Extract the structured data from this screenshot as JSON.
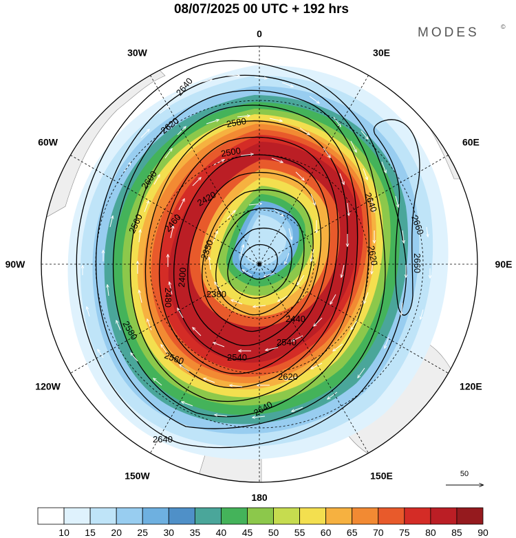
{
  "title": "08/07/2025  00 UTC  + 192 hrs",
  "brand": "MODES",
  "brand_mark": "©",
  "longitude_labels": [
    {
      "label": "0",
      "lon": 0
    },
    {
      "label": "30E",
      "lon": 30
    },
    {
      "label": "60E",
      "lon": 60
    },
    {
      "label": "90E",
      "lon": 90
    },
    {
      "label": "120E",
      "lon": 120
    },
    {
      "label": "150E",
      "lon": 150
    },
    {
      "label": "180",
      "lon": 180
    },
    {
      "label": "150W",
      "lon": -150
    },
    {
      "label": "120W",
      "lon": -120
    },
    {
      "label": "90W",
      "lon": -90
    },
    {
      "label": "60W",
      "lon": -60
    },
    {
      "label": "30W",
      "lon": -30
    }
  ],
  "contour_labels": [
    "2640",
    "2620",
    "2580",
    "2500",
    "2600",
    "2560",
    "2420",
    "2460",
    "2350",
    "2480",
    "2400",
    "2380",
    "2440",
    "2540",
    "2660",
    "2640",
    "2620",
    "2580",
    "2560",
    "2540",
    "2620",
    "2640",
    "2640",
    "2660"
  ],
  "vector_reference": "50",
  "colorbar": {
    "ticks": [
      "10",
      "15",
      "20",
      "25",
      "30",
      "35",
      "40",
      "45",
      "50",
      "55",
      "60",
      "65",
      "70",
      "75",
      "80",
      "85",
      "90"
    ],
    "colors": [
      "#ffffff",
      "#dff2fd",
      "#bfe4f8",
      "#98cdf0",
      "#6eb0e0",
      "#4f90c8",
      "#4aa69a",
      "#44b35a",
      "#8cc84b",
      "#c6dc4f",
      "#f3df4f",
      "#f6b140",
      "#f28a33",
      "#e85a2b",
      "#d42c26",
      "#bb1e25",
      "#951a1e"
    ]
  }
}
